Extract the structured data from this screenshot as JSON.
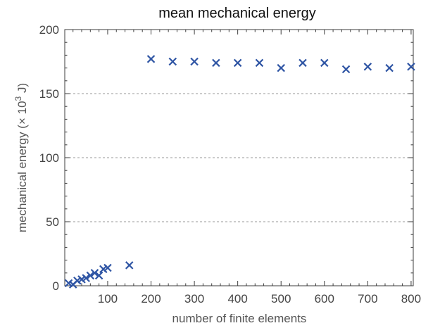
{
  "chart_data": {
    "type": "scatter",
    "title": "mean mechanical energy",
    "xlabel": "number of finite elements",
    "ylabel_main": "mechanical energy (× 10",
    "ylabel_exp": "3",
    "ylabel_tail": " J)",
    "xlim": [
      1,
      805
    ],
    "ylim": [
      0,
      200
    ],
    "x_ticks": [
      100,
      200,
      300,
      400,
      500,
      600,
      700,
      800
    ],
    "y_ticks": [
      0,
      50,
      100,
      150,
      200
    ],
    "x_minor_step": 20,
    "y_minor_step": 10,
    "grid": "horizontal dashed at y ticks",
    "marker": "x",
    "color": "#2f55a4",
    "series": [
      {
        "points": [
          [
            10,
            2
          ],
          [
            20,
            1
          ],
          [
            30,
            4
          ],
          [
            40,
            5
          ],
          [
            50,
            6
          ],
          [
            60,
            8
          ],
          [
            70,
            10
          ],
          [
            80,
            8
          ],
          [
            90,
            13
          ],
          [
            100,
            14
          ],
          [
            150,
            16
          ],
          [
            200,
            177
          ],
          [
            250,
            175
          ],
          [
            300,
            175
          ],
          [
            350,
            174
          ],
          [
            400,
            174
          ],
          [
            450,
            174
          ],
          [
            500,
            170
          ],
          [
            550,
            174
          ],
          [
            600,
            174
          ],
          [
            650,
            169
          ],
          [
            700,
            171
          ],
          [
            750,
            170
          ],
          [
            800,
            171
          ]
        ]
      }
    ]
  }
}
